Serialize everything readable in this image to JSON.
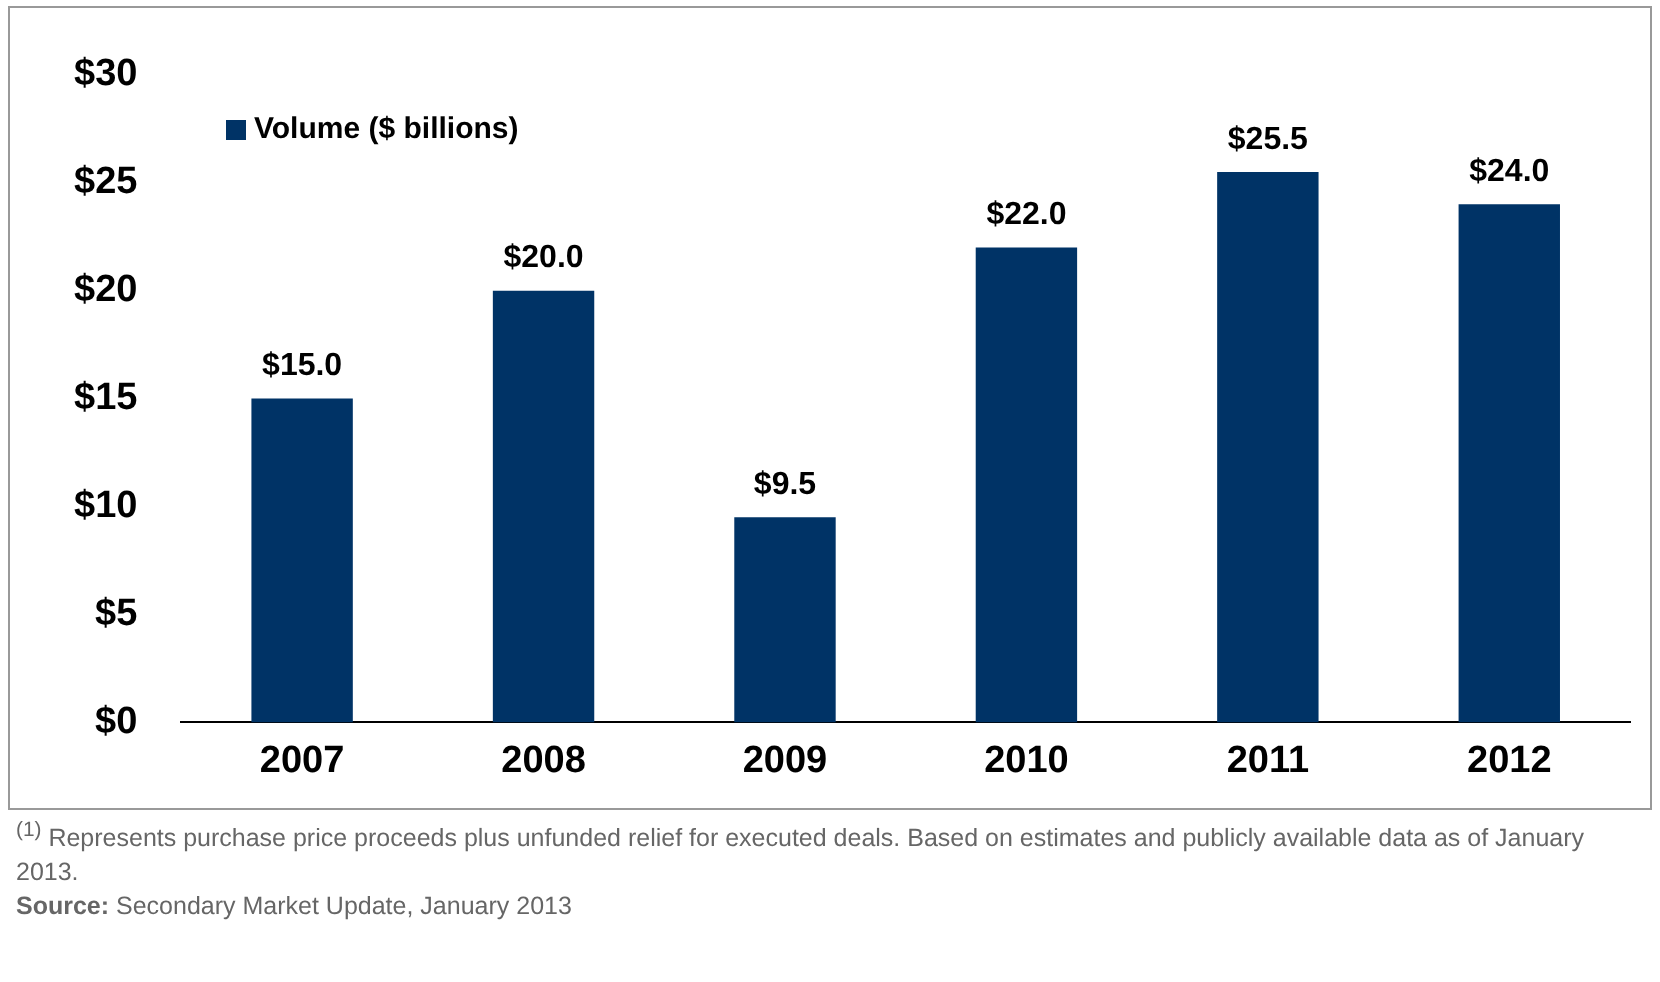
{
  "chart_data": {
    "type": "bar",
    "categories": [
      "2007",
      "2008",
      "2009",
      "2010",
      "2011",
      "2012"
    ],
    "series": [
      {
        "name": "Volume ($ billions)",
        "color": "#003366",
        "values": [
          15.0,
          20.0,
          9.5,
          22.0,
          25.5,
          24.0
        ],
        "value_labels": [
          "$15.0",
          "$20.0",
          "$9.5",
          "$22.0",
          "$25.5",
          "$24.0"
        ]
      }
    ],
    "ylim": [
      0,
      30
    ],
    "yticks": [
      {
        "value": 0,
        "label": "$0"
      },
      {
        "value": 5,
        "label": "$5"
      },
      {
        "value": 10,
        "label": "$10"
      },
      {
        "value": 15,
        "label": "$15"
      },
      {
        "value": 20,
        "label": "$20"
      },
      {
        "value": 25,
        "label": "$25"
      },
      {
        "value": 30,
        "label": "$30"
      }
    ],
    "grid": false,
    "legend": "top left",
    "annotations": [
      "$^{(1)}$ Represents purchase price proceeds plus unfunded relief for executed deals.  Based on estimates and publicly available data as of January 2013.",
      "Source: Secondary Market Update, January 2013"
    ]
  }
}
